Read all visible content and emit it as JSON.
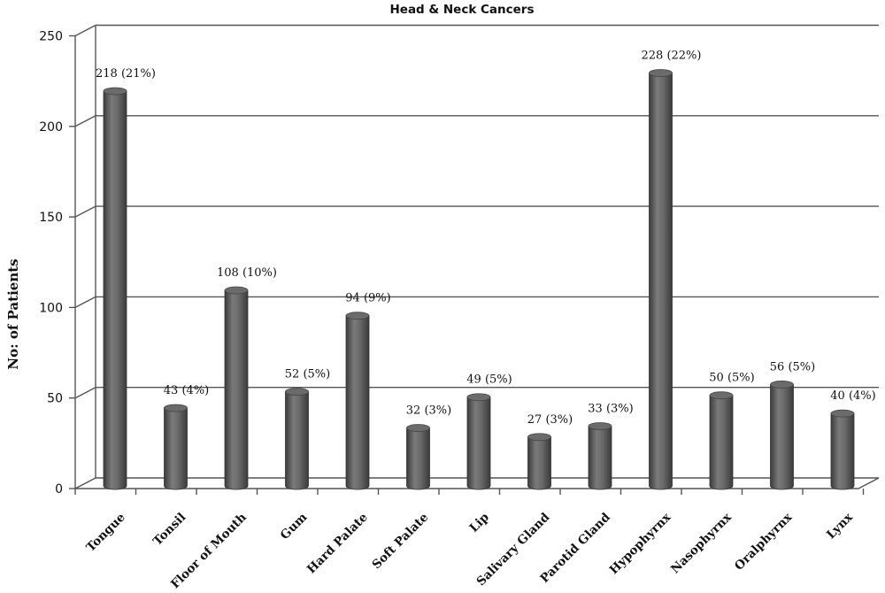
{
  "chart_data": {
    "type": "bar",
    "title": "Head & Neck Cancers",
    "ylabel": "No: of Patients",
    "xlabel": "",
    "ylim": [
      0,
      250
    ],
    "yticks": [
      0,
      50,
      100,
      150,
      200,
      250
    ],
    "grid": true,
    "style": "3d-cylinder",
    "colors": {
      "bar": "#6b6b6b",
      "grid": "#555555"
    },
    "categories": [
      "Tongue",
      "Tonsil",
      "Floor of Mouth",
      "Gum",
      "Hard Palate",
      "Soft Palate",
      "Lip",
      "Salivary Gland",
      "Parotid Gland",
      "Hypophyrnx",
      "Nasophyrnx",
      "Oralphyrnx",
      "Lynx"
    ],
    "values": [
      218,
      43,
      108,
      52,
      94,
      32,
      49,
      27,
      33,
      228,
      50,
      56,
      40
    ],
    "data_labels": [
      "218 (21%)",
      "43 (4%)",
      "108 (10%)",
      "52 (5%)",
      "94 (9%)",
      "32 (3%)",
      "49 (5%)",
      "27 (3%)",
      "33 (3%)",
      "228 (22%)",
      "50 (5%)",
      "56 (5%)",
      "40 (4%)"
    ]
  }
}
